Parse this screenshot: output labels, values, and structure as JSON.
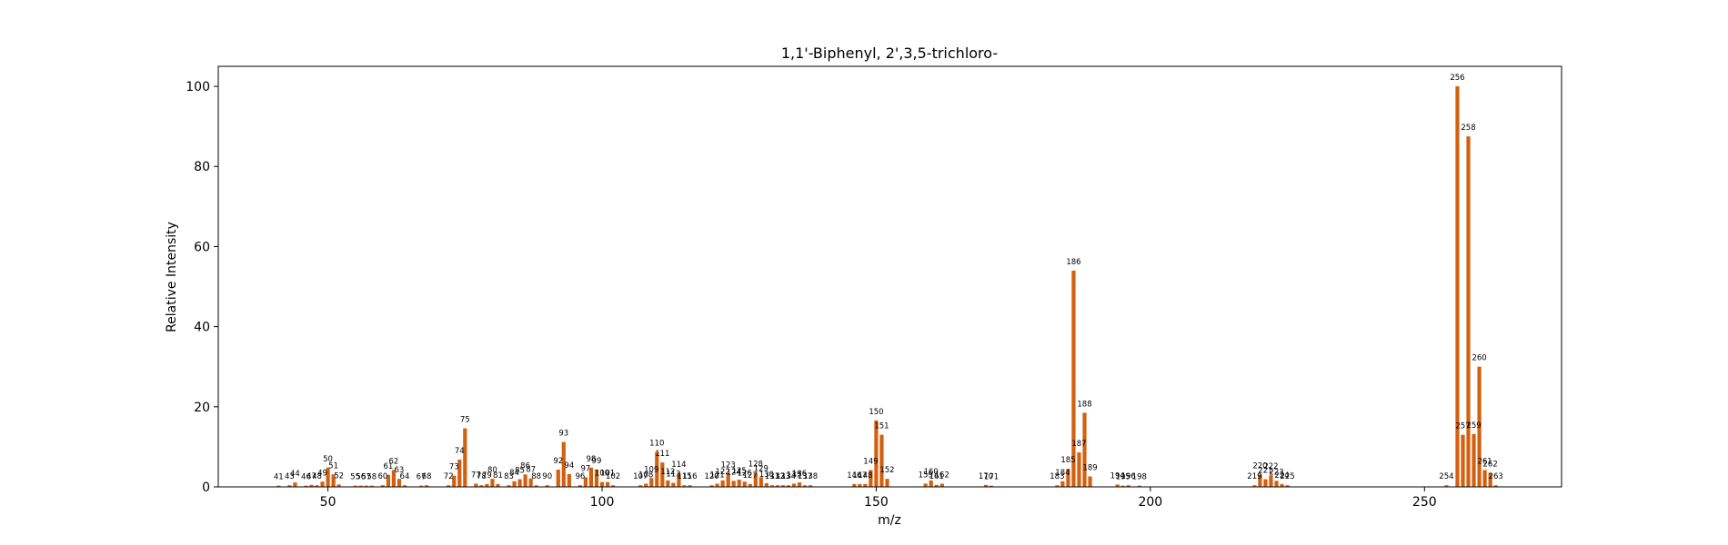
{
  "chart_data": {
    "type": "bar",
    "title": "1,1'-Biphenyl, 2',3,5-trichloro-",
    "xlabel": "m/z",
    "ylabel": "Relative Intensity",
    "xlim": [
      30,
      275
    ],
    "ylim": [
      0,
      105
    ],
    "xticks": [
      50,
      100,
      150,
      200,
      250
    ],
    "yticks": [
      0,
      20,
      40,
      60,
      80,
      100
    ],
    "grid": false,
    "bar_color": "#d2600f",
    "peaks": [
      {
        "x": 41,
        "y": 0.3
      },
      {
        "x": 43,
        "y": 0.4
      },
      {
        "x": 44,
        "y": 1.1
      },
      {
        "x": 46,
        "y": 0.3
      },
      {
        "x": 47,
        "y": 0.5
      },
      {
        "x": 48,
        "y": 0.4
      },
      {
        "x": 49,
        "y": 1.3
      },
      {
        "x": 50,
        "y": 4.8
      },
      {
        "x": 51,
        "y": 3.1
      },
      {
        "x": 52,
        "y": 0.6
      },
      {
        "x": 55,
        "y": 0.3
      },
      {
        "x": 56,
        "y": 0.3
      },
      {
        "x": 57,
        "y": 0.3
      },
      {
        "x": 58,
        "y": 0.3
      },
      {
        "x": 60,
        "y": 0.4
      },
      {
        "x": 61,
        "y": 3.0
      },
      {
        "x": 62,
        "y": 4.2
      },
      {
        "x": 63,
        "y": 2.0
      },
      {
        "x": 64,
        "y": 0.4
      },
      {
        "x": 67,
        "y": 0.3
      },
      {
        "x": 68,
        "y": 0.4
      },
      {
        "x": 72,
        "y": 0.4
      },
      {
        "x": 73,
        "y": 2.8
      },
      {
        "x": 74,
        "y": 6.8
      },
      {
        "x": 75,
        "y": 14.6
      },
      {
        "x": 77,
        "y": 0.8
      },
      {
        "x": 78,
        "y": 0.4
      },
      {
        "x": 79,
        "y": 0.7
      },
      {
        "x": 80,
        "y": 2.0
      },
      {
        "x": 81,
        "y": 0.7
      },
      {
        "x": 83,
        "y": 0.4
      },
      {
        "x": 84,
        "y": 1.4
      },
      {
        "x": 85,
        "y": 1.9
      },
      {
        "x": 86,
        "y": 3.1
      },
      {
        "x": 87,
        "y": 2.1
      },
      {
        "x": 88,
        "y": 0.4
      },
      {
        "x": 90,
        "y": 0.4
      },
      {
        "x": 92,
        "y": 4.3
      },
      {
        "x": 93,
        "y": 11.2
      },
      {
        "x": 94,
        "y": 3.2
      },
      {
        "x": 96,
        "y": 0.4
      },
      {
        "x": 97,
        "y": 2.4
      },
      {
        "x": 98,
        "y": 4.8
      },
      {
        "x": 99,
        "y": 4.3
      },
      {
        "x": 100,
        "y": 1.2
      },
      {
        "x": 101,
        "y": 1.2
      },
      {
        "x": 102,
        "y": 0.4
      },
      {
        "x": 107,
        "y": 0.4
      },
      {
        "x": 108,
        "y": 0.8
      },
      {
        "x": 109,
        "y": 2.2
      },
      {
        "x": 110,
        "y": 8.7
      },
      {
        "x": 111,
        "y": 6.1
      },
      {
        "x": 112,
        "y": 1.6
      },
      {
        "x": 113,
        "y": 1.0
      },
      {
        "x": 114,
        "y": 3.4
      },
      {
        "x": 115,
        "y": 0.4
      },
      {
        "x": 116,
        "y": 0.4
      },
      {
        "x": 120,
        "y": 0.4
      },
      {
        "x": 121,
        "y": 0.8
      },
      {
        "x": 122,
        "y": 1.6
      },
      {
        "x": 123,
        "y": 3.3
      },
      {
        "x": 124,
        "y": 1.5
      },
      {
        "x": 125,
        "y": 1.8
      },
      {
        "x": 126,
        "y": 1.3
      },
      {
        "x": 127,
        "y": 0.7
      },
      {
        "x": 128,
        "y": 3.5
      },
      {
        "x": 129,
        "y": 2.4
      },
      {
        "x": 130,
        "y": 0.9
      },
      {
        "x": 131,
        "y": 0.4
      },
      {
        "x": 132,
        "y": 0.4
      },
      {
        "x": 133,
        "y": 0.4
      },
      {
        "x": 134,
        "y": 0.4
      },
      {
        "x": 135,
        "y": 0.8
      },
      {
        "x": 136,
        "y": 1.1
      },
      {
        "x": 137,
        "y": 0.4
      },
      {
        "x": 138,
        "y": 0.4
      },
      {
        "x": 146,
        "y": 0.7
      },
      {
        "x": 147,
        "y": 0.7
      },
      {
        "x": 148,
        "y": 0.7
      },
      {
        "x": 149,
        "y": 4.2
      },
      {
        "x": 150,
        "y": 16.6
      },
      {
        "x": 151,
        "y": 13.0
      },
      {
        "x": 152,
        "y": 2.0
      },
      {
        "x": 159,
        "y": 0.8
      },
      {
        "x": 160,
        "y": 1.6
      },
      {
        "x": 161,
        "y": 0.5
      },
      {
        "x": 162,
        "y": 0.8
      },
      {
        "x": 170,
        "y": 0.5
      },
      {
        "x": 171,
        "y": 0.3
      },
      {
        "x": 183,
        "y": 0.4
      },
      {
        "x": 184,
        "y": 1.4
      },
      {
        "x": 185,
        "y": 4.5
      },
      {
        "x": 186,
        "y": 54.0
      },
      {
        "x": 187,
        "y": 8.6
      },
      {
        "x": 188,
        "y": 18.5
      },
      {
        "x": 189,
        "y": 2.6
      },
      {
        "x": 194,
        "y": 0.6
      },
      {
        "x": 195,
        "y": 0.3
      },
      {
        "x": 196,
        "y": 0.4
      },
      {
        "x": 198,
        "y": 0.3
      },
      {
        "x": 219,
        "y": 0.4
      },
      {
        "x": 220,
        "y": 3.1
      },
      {
        "x": 221,
        "y": 1.9
      },
      {
        "x": 222,
        "y": 2.9
      },
      {
        "x": 223,
        "y": 1.5
      },
      {
        "x": 224,
        "y": 0.7
      },
      {
        "x": 225,
        "y": 0.4
      },
      {
        "x": 254,
        "y": 0.4
      },
      {
        "x": 256,
        "y": 100.0
      },
      {
        "x": 257,
        "y": 13.0
      },
      {
        "x": 258,
        "y": 87.5
      },
      {
        "x": 259,
        "y": 13.2
      },
      {
        "x": 260,
        "y": 30.0
      },
      {
        "x": 261,
        "y": 4.2
      },
      {
        "x": 262,
        "y": 3.5
      },
      {
        "x": 263,
        "y": 0.4
      }
    ]
  }
}
